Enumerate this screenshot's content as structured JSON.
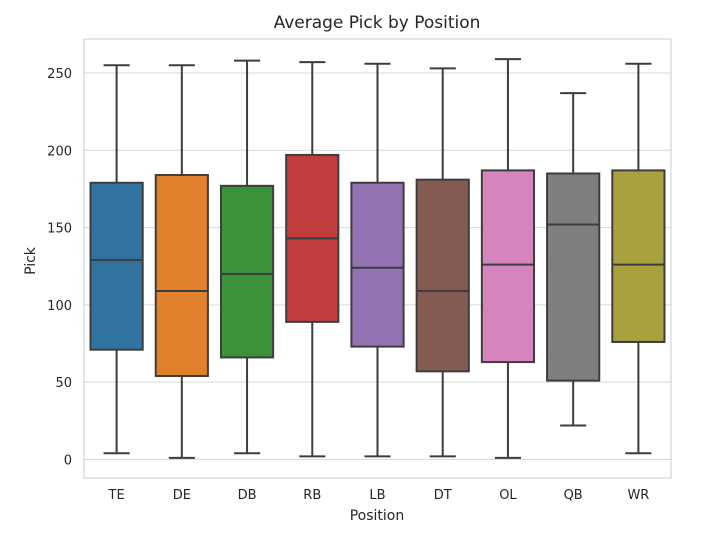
{
  "chart_data": {
    "type": "box",
    "title": "Average Pick by Position",
    "xlabel": "Position",
    "ylabel": "Pick",
    "ylim": [
      -12,
      272
    ],
    "yticks": [
      0,
      50,
      100,
      150,
      200,
      250
    ],
    "grid": true,
    "categories": [
      "TE",
      "DE",
      "DB",
      "RB",
      "LB",
      "DT",
      "OL",
      "QB",
      "WR"
    ],
    "boxes": [
      {
        "category": "TE",
        "whisker_low": 4,
        "q1": 71,
        "median": 129,
        "q3": 179,
        "whisker_high": 255,
        "color": "#3274a1"
      },
      {
        "category": "DE",
        "whisker_low": 1,
        "q1": 54,
        "median": 109,
        "q3": 184,
        "whisker_high": 255,
        "color": "#e1812c"
      },
      {
        "category": "DB",
        "whisker_low": 4,
        "q1": 66,
        "median": 120,
        "q3": 177,
        "whisker_high": 258,
        "color": "#3a923a"
      },
      {
        "category": "RB",
        "whisker_low": 2,
        "q1": 89,
        "median": 143,
        "q3": 197,
        "whisker_high": 257,
        "color": "#c03d3e"
      },
      {
        "category": "LB",
        "whisker_low": 2,
        "q1": 73,
        "median": 124,
        "q3": 179,
        "whisker_high": 256,
        "color": "#9372b2"
      },
      {
        "category": "DT",
        "whisker_low": 2,
        "q1": 57,
        "median": 109,
        "q3": 181,
        "whisker_high": 253,
        "color": "#845b53"
      },
      {
        "category": "OL",
        "whisker_low": 1,
        "q1": 63,
        "median": 126,
        "q3": 187,
        "whisker_high": 259,
        "color": "#d684bd"
      },
      {
        "category": "QB",
        "whisker_low": 22,
        "q1": 51,
        "median": 152,
        "q3": 185,
        "whisker_high": 237,
        "color": "#7f7f7f"
      },
      {
        "category": "WR",
        "whisker_low": 4,
        "q1": 76,
        "median": 126,
        "q3": 187,
        "whisker_high": 256,
        "color": "#a9a040"
      }
    ],
    "style": {
      "grid_color": "#d9d9d9",
      "spine_color": "#cccccc",
      "line_color": "#3d3d3d"
    }
  }
}
